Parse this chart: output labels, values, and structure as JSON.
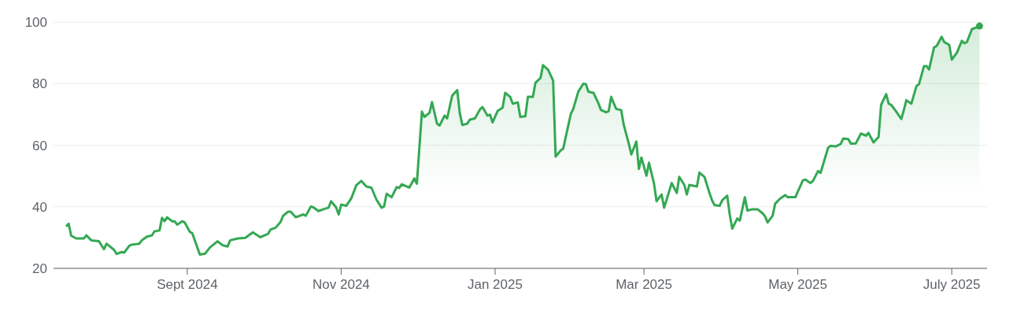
{
  "chart_data": {
    "type": "area",
    "grid": "y",
    "xlim": [
      "2024-07-10",
      "2025-07-15"
    ],
    "ylim": [
      20,
      100
    ],
    "yticks": [
      20,
      40,
      60,
      80,
      100
    ],
    "xticks": [
      {
        "value": "2024-09-01",
        "label": "Sept 2024"
      },
      {
        "value": "2024-11-01",
        "label": "Nov 2024"
      },
      {
        "value": "2025-01-01",
        "label": "Jan 2025"
      },
      {
        "value": "2025-03-01",
        "label": "Mar 2025"
      },
      {
        "value": "2025-05-01",
        "label": "May 2025"
      },
      {
        "value": "2025-07-01",
        "label": "July 2025"
      }
    ],
    "series": [
      {
        "color": "#34a853",
        "x": [
          "2024-07-15",
          "2024-07-16",
          "2024-07-17",
          "2024-07-19",
          "2024-07-22",
          "2024-07-23",
          "2024-07-25",
          "2024-07-28",
          "2024-07-30",
          "2024-07-31",
          "2024-08-03",
          "2024-08-04",
          "2024-08-06",
          "2024-08-07",
          "2024-08-09",
          "2024-08-10",
          "2024-08-13",
          "2024-08-14",
          "2024-08-16",
          "2024-08-18",
          "2024-08-19",
          "2024-08-21",
          "2024-08-22",
          "2024-08-23",
          "2024-08-24",
          "2024-08-26",
          "2024-08-27",
          "2024-08-28",
          "2024-08-30",
          "2024-08-31",
          "2024-09-02",
          "2024-09-03",
          "2024-09-05",
          "2024-09-06",
          "2024-09-08",
          "2024-09-10",
          "2024-09-13",
          "2024-09-15",
          "2024-09-17",
          "2024-09-18",
          "2024-09-21",
          "2024-09-24",
          "2024-09-27",
          "2024-09-30",
          "2024-10-03",
          "2024-10-04",
          "2024-10-06",
          "2024-10-08",
          "2024-10-09",
          "2024-10-11",
          "2024-10-12",
          "2024-10-14",
          "2024-10-17",
          "2024-10-18",
          "2024-10-20",
          "2024-10-21",
          "2024-10-23",
          "2024-10-25",
          "2024-10-27",
          "2024-10-28",
          "2024-10-30",
          "2024-10-31",
          "2024-11-01",
          "2024-11-03",
          "2024-11-05",
          "2024-11-07",
          "2024-11-09",
          "2024-11-11",
          "2024-11-13",
          "2024-11-15",
          "2024-11-17",
          "2024-11-18",
          "2024-11-19",
          "2024-11-21",
          "2024-11-23",
          "2024-11-24",
          "2024-11-25",
          "2024-11-28",
          "2024-11-30",
          "2024-12-01",
          "2024-12-03",
          "2024-12-04",
          "2024-12-06",
          "2024-12-07",
          "2024-12-09",
          "2024-12-10",
          "2024-12-12",
          "2024-12-13",
          "2024-12-15",
          "2024-12-17",
          "2024-12-18",
          "2024-12-19",
          "2024-12-21",
          "2024-12-22",
          "2024-12-24",
          "2024-12-26",
          "2024-12-27",
          "2024-12-29",
          "2024-12-30",
          "2024-12-31",
          "2025-01-02",
          "2025-01-04",
          "2025-01-05",
          "2025-01-07",
          "2025-01-08",
          "2025-01-10",
          "2025-01-11",
          "2025-01-13",
          "2025-01-14",
          "2025-01-16",
          "2025-01-17",
          "2025-01-19",
          "2025-01-20",
          "2025-01-22",
          "2025-01-24",
          "2025-01-25",
          "2025-01-27",
          "2025-01-28",
          "2025-01-31",
          "2025-02-01",
          "2025-02-03",
          "2025-02-05",
          "2025-02-06",
          "2025-02-07",
          "2025-02-09",
          "2025-02-11",
          "2025-02-12",
          "2025-02-14",
          "2025-02-15",
          "2025-02-16",
          "2025-02-18",
          "2025-02-20",
          "2025-02-21",
          "2025-02-23",
          "2025-02-24",
          "2025-02-26",
          "2025-02-27",
          "2025-02-28",
          "2025-03-02",
          "2025-03-03",
          "2025-03-05",
          "2025-03-06",
          "2025-03-08",
          "2025-03-09",
          "2025-03-12",
          "2025-03-14",
          "2025-03-15",
          "2025-03-17",
          "2025-03-18",
          "2025-03-19",
          "2025-03-22",
          "2025-03-23",
          "2025-03-25",
          "2025-03-27",
          "2025-03-28",
          "2025-03-29",
          "2025-03-31",
          "2025-04-01",
          "2025-04-03",
          "2025-04-04",
          "2025-04-05",
          "2025-04-07",
          "2025-04-08",
          "2025-04-10",
          "2025-04-11",
          "2025-04-13",
          "2025-04-15",
          "2025-04-17",
          "2025-04-18",
          "2025-04-19",
          "2025-04-21",
          "2025-04-22",
          "2025-04-24",
          "2025-04-26",
          "2025-04-27",
          "2025-04-30",
          "2025-05-03",
          "2025-05-04",
          "2025-05-06",
          "2025-05-07",
          "2025-05-09",
          "2025-05-10",
          "2025-05-13",
          "2025-05-14",
          "2025-05-16",
          "2025-05-18",
          "2025-05-19",
          "2025-05-21",
          "2025-05-22",
          "2025-05-24",
          "2025-05-26",
          "2025-05-28",
          "2025-05-29",
          "2025-05-31",
          "2025-06-02",
          "2025-06-03",
          "2025-06-05",
          "2025-06-06",
          "2025-06-07",
          "2025-06-09",
          "2025-06-11",
          "2025-06-12",
          "2025-06-13",
          "2025-06-15",
          "2025-06-17",
          "2025-06-18",
          "2025-06-20",
          "2025-06-21",
          "2025-06-22",
          "2025-06-24",
          "2025-06-25",
          "2025-06-27",
          "2025-06-28",
          "2025-06-30",
          "2025-07-01",
          "2025-07-03",
          "2025-07-05",
          "2025-07-06",
          "2025-07-07",
          "2025-07-09",
          "2025-07-11",
          "2025-07-12"
        ],
        "values": [
          33.6,
          34.5,
          30.6,
          29.7,
          29.7,
          30.7,
          29.1,
          28.8,
          26.2,
          28.0,
          26.0,
          24.7,
          25.3,
          25.1,
          27.3,
          27.7,
          28.0,
          29.1,
          30.3,
          30.7,
          32.0,
          32.3,
          36.4,
          35.3,
          36.6,
          35.3,
          35.3,
          34.2,
          35.3,
          34.9,
          31.9,
          31.4,
          26.8,
          24.5,
          24.7,
          26.8,
          28.8,
          27.5,
          27.1,
          29.1,
          29.7,
          29.9,
          31.7,
          30.1,
          31.2,
          32.6,
          33.2,
          35.1,
          37.1,
          38.4,
          38.4,
          36.6,
          37.5,
          37.1,
          40.1,
          39.8,
          38.6,
          39.2,
          39.7,
          41.8,
          39.8,
          37.5,
          40.7,
          40.3,
          42.7,
          47.0,
          48.4,
          46.6,
          46.2,
          42.3,
          39.7,
          40.1,
          44.2,
          43.1,
          46.4,
          46.1,
          47.3,
          46.2,
          49.2,
          47.5,
          70.9,
          69.2,
          70.5,
          74.0,
          67.0,
          66.4,
          69.6,
          68.7,
          76.1,
          77.9,
          70.5,
          66.6,
          67.0,
          68.3,
          68.7,
          71.6,
          72.4,
          69.6,
          69.9,
          67.4,
          71.1,
          72.2,
          77.0,
          75.7,
          73.5,
          73.9,
          69.2,
          69.4,
          75.7,
          75.7,
          80.3,
          81.8,
          86.0,
          84.5,
          81.0,
          56.3,
          58.3,
          58.9,
          70.1,
          71.8,
          77.4,
          80.0,
          79.8,
          77.4,
          77.0,
          73.5,
          71.4,
          70.7,
          71.0,
          75.7,
          71.8,
          71.4,
          66.6,
          60.5,
          57.0,
          61.2,
          52.3,
          56.0,
          50.1,
          54.3,
          47.5,
          41.8,
          44.0,
          39.7,
          47.7,
          44.5,
          49.7,
          47.1,
          44.0,
          47.1,
          46.6,
          51.1,
          49.7,
          44.4,
          42.1,
          40.5,
          40.3,
          42.1,
          43.6,
          37.5,
          32.9,
          36.2,
          35.5,
          43.1,
          38.8,
          39.2,
          39.2,
          37.9,
          36.9,
          34.9,
          37.1,
          41.0,
          42.7,
          43.8,
          43.1,
          43.1,
          48.6,
          48.8,
          47.7,
          48.4,
          51.6,
          51.0,
          59.2,
          59.8,
          59.6,
          60.4,
          62.2,
          62.0,
          60.5,
          60.6,
          63.8,
          63.1,
          64.0,
          60.9,
          62.7,
          73.1,
          76.6,
          73.5,
          73.1,
          70.9,
          68.5,
          71.4,
          74.6,
          73.5,
          79.2,
          79.8,
          85.7,
          85.7,
          84.6,
          91.8,
          92.2,
          95.2,
          93.5,
          92.6,
          87.8,
          90.0,
          93.9,
          93.1,
          93.5,
          97.7,
          98.3,
          98.7
        ]
      },
      {
        "type": "scatter",
        "color": "#34a853",
        "marker": "circle",
        "x": [
          "2025-07-12"
        ],
        "values": [
          98.7
        ]
      }
    ]
  }
}
